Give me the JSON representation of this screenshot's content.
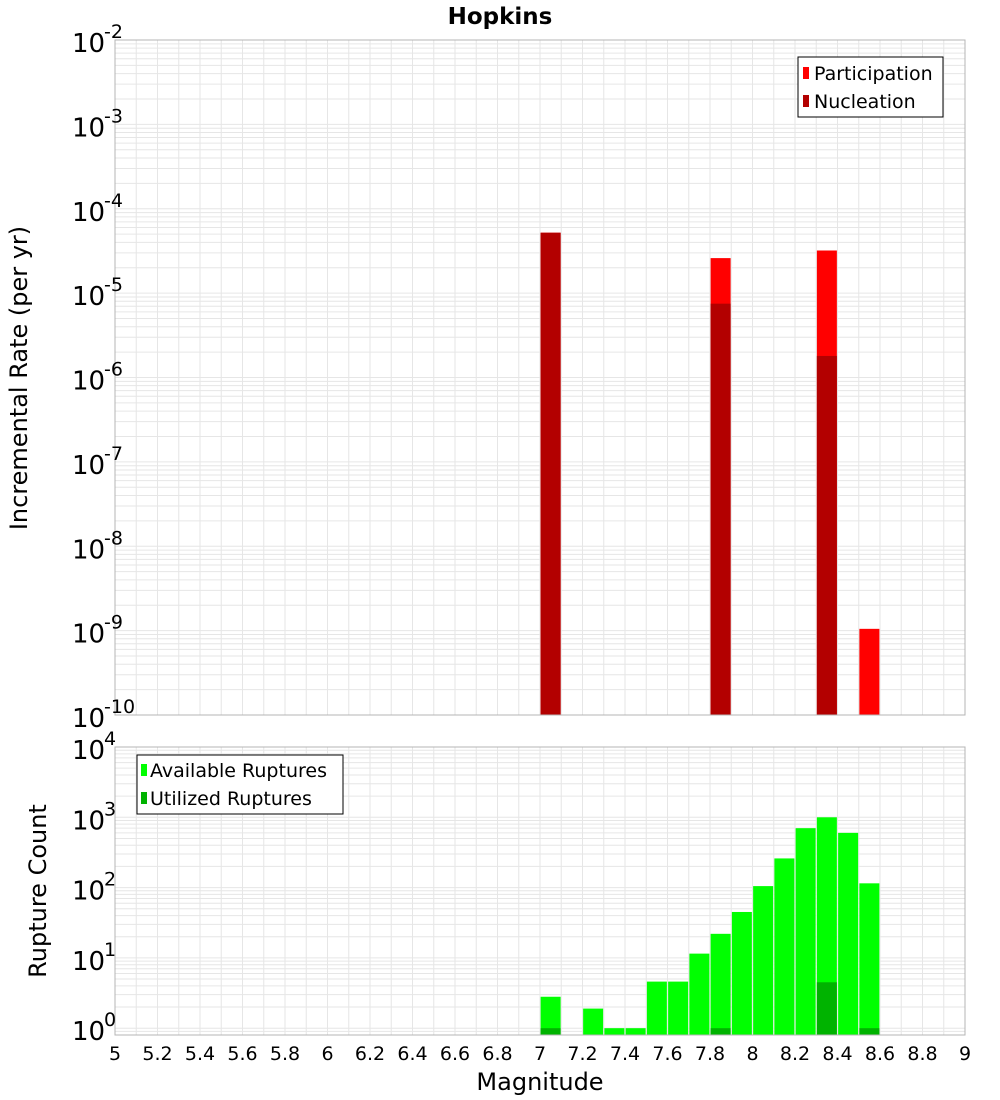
{
  "chart_data": [
    {
      "type": "bar",
      "title": "Hopkins",
      "ylabel": "Incremental Rate (per yr)",
      "xlabel": "",
      "yscale": "log",
      "ylim": [
        1e-10,
        0.01
      ],
      "xlim": [
        5,
        9
      ],
      "grid": true,
      "legend_position": "top-right",
      "series": [
        {
          "name": "Participation",
          "color": "#ff0000",
          "x": [
            7.05,
            7.85,
            8.35,
            8.55
          ],
          "values": [
            5.2e-05,
            2.6e-05,
            3.2e-05,
            1.05e-09
          ]
        },
        {
          "name": "Nucleation",
          "color": "#b30000",
          "x": [
            7.05,
            7.85,
            8.35
          ],
          "values": [
            5.2e-05,
            7.5e-06,
            1.8e-06
          ]
        }
      ],
      "y_tick_exponents": [
        "-2",
        "-3",
        "-4",
        "-5",
        "-6",
        "-7",
        "-8",
        "-9",
        "-10"
      ]
    },
    {
      "type": "bar",
      "ylabel": "Rupture Count",
      "xlabel": "Magnitude",
      "yscale": "log",
      "ylim": [
        0.8,
        10000
      ],
      "xlim": [
        5,
        9
      ],
      "grid": true,
      "legend_position": "top-left",
      "series": [
        {
          "name": "Available Ruptures",
          "color": "#00ff00",
          "x": [
            7.05,
            7.25,
            7.35,
            7.45,
            7.55,
            7.65,
            7.75,
            7.85,
            7.95,
            8.05,
            8.15,
            8.25,
            8.35,
            8.45,
            8.55
          ],
          "values": [
            2.8,
            1.9,
            1,
            1,
            4.6,
            4.6,
            11.5,
            22,
            45,
            105,
            260,
            700,
            1000,
            600,
            115
          ]
        },
        {
          "name": "Utilized Ruptures",
          "color": "#00b300",
          "x": [
            7.05,
            7.85,
            8.35,
            8.55
          ],
          "values": [
            1,
            1,
            4.5,
            1
          ]
        }
      ],
      "y_tick_exponents": [
        "4",
        "3",
        "2",
        "1",
        "0"
      ]
    }
  ],
  "x_tick_labels": [
    "5",
    "5.2",
    "5.4",
    "5.6",
    "5.8",
    "6",
    "6.2",
    "6.4",
    "6.6",
    "6.8",
    "7",
    "7.2",
    "7.4",
    "7.6",
    "7.8",
    "8",
    "8.2",
    "8.4",
    "8.6",
    "8.8",
    "9"
  ],
  "y_tick_base": "10"
}
